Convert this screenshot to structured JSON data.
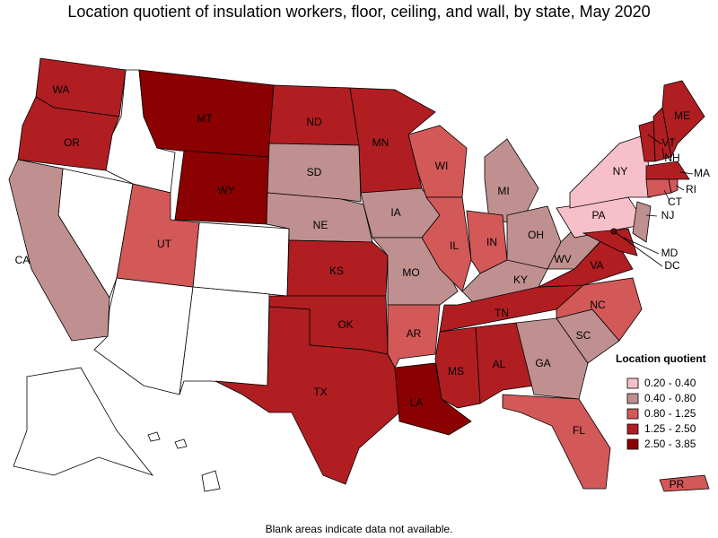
{
  "title": "Location quotient of insulation workers, floor, ceiling, and wall, by state, May 2020",
  "note": "Blank areas indicate data not available.",
  "legend": {
    "title": "Location quotient",
    "items": [
      {
        "label": "0.20 - 0.40",
        "color": "#f7bfca"
      },
      {
        "label": "0.40 - 0.80",
        "color": "#c09090"
      },
      {
        "label": "0.80 - 1.25",
        "color": "#d35858"
      },
      {
        "label": "1.25 - 2.50",
        "color": "#b01e22"
      },
      {
        "label": "2.50 - 3.85",
        "color": "#8b0000"
      }
    ]
  },
  "states": [
    {
      "label": "WA",
      "bin": 3
    },
    {
      "label": "OR",
      "bin": 3
    },
    {
      "label": "CA",
      "bin": 1
    },
    {
      "label": "MT",
      "bin": 4
    },
    {
      "label": "WY",
      "bin": 4
    },
    {
      "label": "UT",
      "bin": 2
    },
    {
      "label": "ND",
      "bin": 3
    },
    {
      "label": "SD",
      "bin": 1
    },
    {
      "label": "NE",
      "bin": 1
    },
    {
      "label": "KS",
      "bin": 3
    },
    {
      "label": "OK",
      "bin": 3
    },
    {
      "label": "TX",
      "bin": 3
    },
    {
      "label": "MN",
      "bin": 3
    },
    {
      "label": "IA",
      "bin": 1
    },
    {
      "label": "MO",
      "bin": 1
    },
    {
      "label": "AR",
      "bin": 2
    },
    {
      "label": "LA",
      "bin": 4
    },
    {
      "label": "WI",
      "bin": 2
    },
    {
      "label": "IL",
      "bin": 2
    },
    {
      "label": "MI",
      "bin": 1
    },
    {
      "label": "IN",
      "bin": 2
    },
    {
      "label": "OH",
      "bin": 1
    },
    {
      "label": "KY",
      "bin": 1
    },
    {
      "label": "TN",
      "bin": 3
    },
    {
      "label": "MS",
      "bin": 3
    },
    {
      "label": "AL",
      "bin": 3
    },
    {
      "label": "GA",
      "bin": 1
    },
    {
      "label": "FL",
      "bin": 2
    },
    {
      "label": "SC",
      "bin": 1
    },
    {
      "label": "NC",
      "bin": 2
    },
    {
      "label": "VA",
      "bin": 3
    },
    {
      "label": "WV",
      "bin": 1
    },
    {
      "label": "PA",
      "bin": 0
    },
    {
      "label": "NY",
      "bin": 0
    },
    {
      "label": "NJ",
      "bin": 1
    },
    {
      "label": "MD",
      "bin": 3
    },
    {
      "label": "DC",
      "bin": 4
    },
    {
      "label": "VT",
      "bin": 3
    },
    {
      "label": "NH",
      "bin": 3
    },
    {
      "label": "ME",
      "bin": 3
    },
    {
      "label": "MA",
      "bin": 3
    },
    {
      "label": "CT",
      "bin": 2
    },
    {
      "label": "RI",
      "bin": 2
    },
    {
      "label": "PR",
      "bin": 2
    }
  ]
}
